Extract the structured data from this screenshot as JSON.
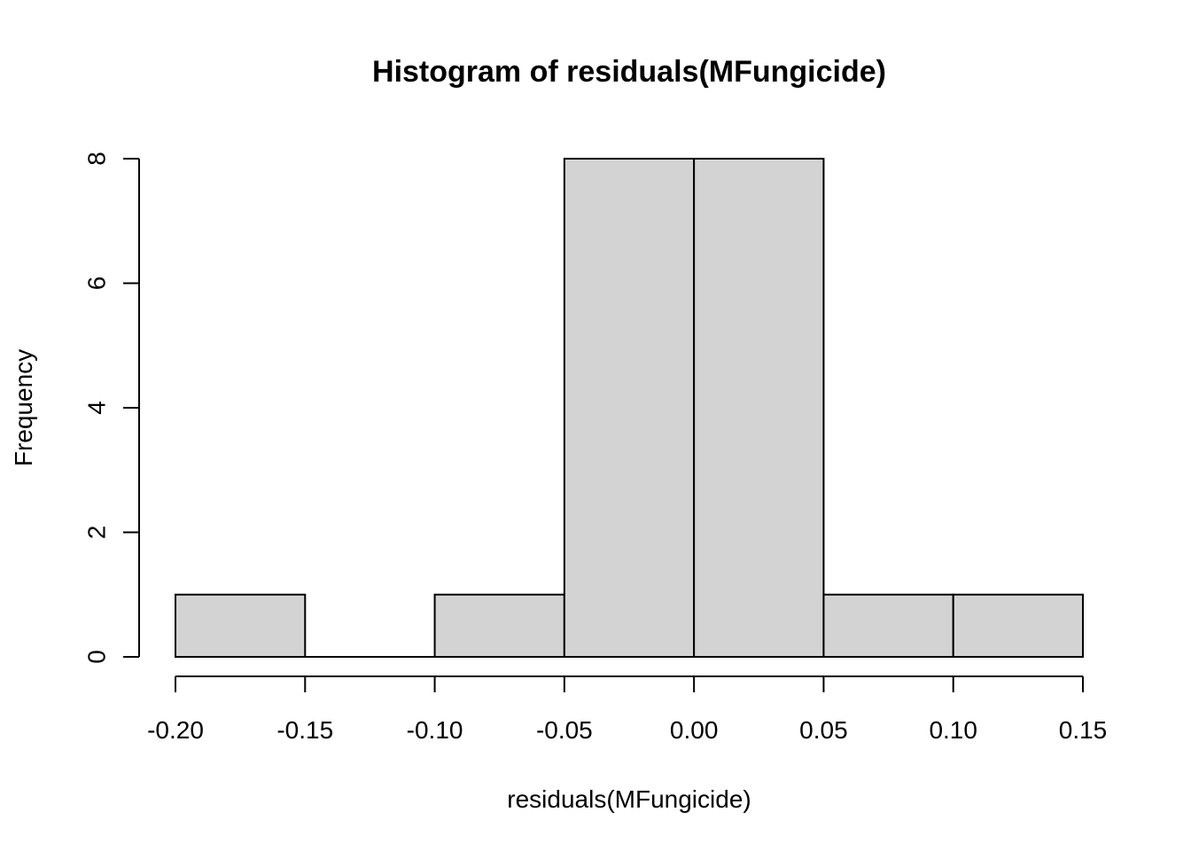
{
  "chart_data": {
    "type": "bar",
    "title": "Histogram of residuals(MFungicide)",
    "xlabel": "residuals(MFungicide)",
    "ylabel": "Frequency",
    "bins": [
      {
        "from": -0.2,
        "to": -0.15,
        "count": 1
      },
      {
        "from": -0.15,
        "to": -0.1,
        "count": 0
      },
      {
        "from": -0.1,
        "to": -0.05,
        "count": 1
      },
      {
        "from": -0.05,
        "to": 0.0,
        "count": 8
      },
      {
        "from": 0.0,
        "to": 0.05,
        "count": 8
      },
      {
        "from": 0.05,
        "to": 0.1,
        "count": 1
      },
      {
        "from": 0.1,
        "to": 0.15,
        "count": 1
      }
    ],
    "x_ticks": [
      "-0.20",
      "-0.15",
      "-0.10",
      "-0.05",
      "0.00",
      "0.05",
      "0.10",
      "0.15"
    ],
    "x_tick_values": [
      -0.2,
      -0.15,
      -0.1,
      -0.05,
      0.0,
      0.05,
      0.1,
      0.15
    ],
    "y_ticks": [
      "0",
      "2",
      "4",
      "6",
      "8"
    ],
    "y_tick_values": [
      0,
      2,
      4,
      6,
      8
    ],
    "xlim": [
      -0.2,
      0.15
    ],
    "ylim": [
      0,
      8
    ],
    "grid": false,
    "bar_color": "#d3d3d3",
    "border_color": "#000000"
  }
}
